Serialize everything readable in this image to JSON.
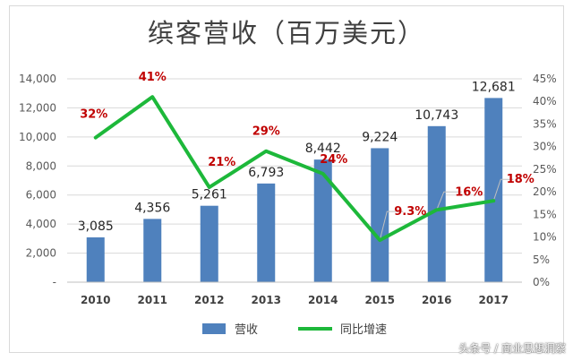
{
  "chart_data": {
    "type": "bar+line",
    "title": "缤客营收（百万美元）",
    "categories": [
      "2010",
      "2011",
      "2012",
      "2013",
      "2014",
      "2015",
      "2016",
      "2017"
    ],
    "series": [
      {
        "name": "营收",
        "type": "bar",
        "axis": "left",
        "color": "#4f81bd",
        "values": [
          3085,
          4356,
          5261,
          6793,
          8442,
          9224,
          10743,
          12681
        ],
        "labels": [
          "3,085",
          "4,356",
          "5,261",
          "6,793",
          "8,442",
          "9,224",
          "10,743",
          "12,681"
        ]
      },
      {
        "name": "同比增速",
        "type": "line",
        "axis": "right",
        "color": "#1db83a",
        "values": [
          32,
          41,
          21,
          29,
          24,
          9.3,
          16,
          18
        ],
        "labels": [
          "32%",
          "41%",
          "21%",
          "29%",
          "24%",
          "9.3%",
          "16%",
          "18%"
        ]
      }
    ],
    "y_left": {
      "min": 0,
      "max": 14000,
      "ticks": [
        0,
        2000,
        4000,
        6000,
        8000,
        10000,
        12000,
        14000
      ],
      "tick_labels": [
        "-",
        "2,000",
        "4,000",
        "6,000",
        "8,000",
        "10,000",
        "12,000",
        "14,000"
      ]
    },
    "y_right": {
      "min": 0,
      "max": 45,
      "ticks": [
        0,
        5,
        10,
        15,
        20,
        25,
        30,
        35,
        40,
        45
      ],
      "tick_labels": [
        "0%",
        "5%",
        "10%",
        "15%",
        "20%",
        "25%",
        "30%",
        "35%",
        "40%",
        "45%"
      ]
    },
    "grid": true,
    "legend_position": "bottom",
    "label_color": "#c00000"
  },
  "watermark": "头条号 / 商业思想洞察"
}
